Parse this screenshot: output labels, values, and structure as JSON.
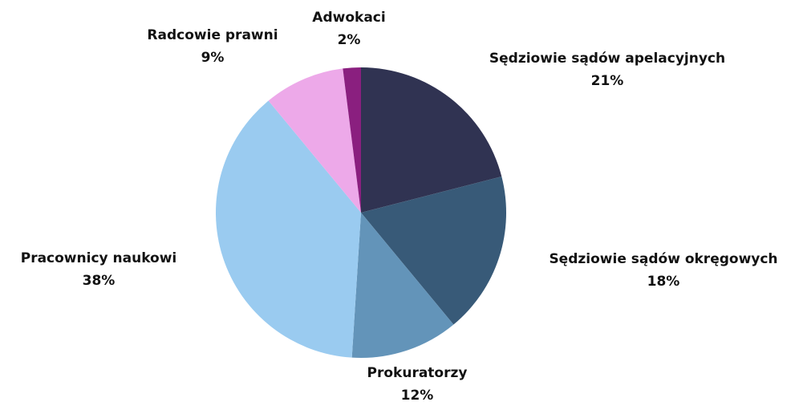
{
  "chart_data": {
    "type": "pie",
    "categories": [
      "Sędziowie sądów apelacyjnych",
      "Sędziowie sądów okręgowych",
      "Prokuratorzy",
      "Pracownicy naukowi",
      "Radcowie prawni",
      "Adwokaci"
    ],
    "values": [
      21,
      18,
      12,
      38,
      9,
      2
    ],
    "value_labels": [
      "21%",
      "18%",
      "12%",
      "38%",
      "9%",
      "2%"
    ],
    "colors": [
      "#303352",
      "#385a78",
      "#6394b9",
      "#9acbf0",
      "#eda9e9",
      "#8a1f7f"
    ]
  }
}
